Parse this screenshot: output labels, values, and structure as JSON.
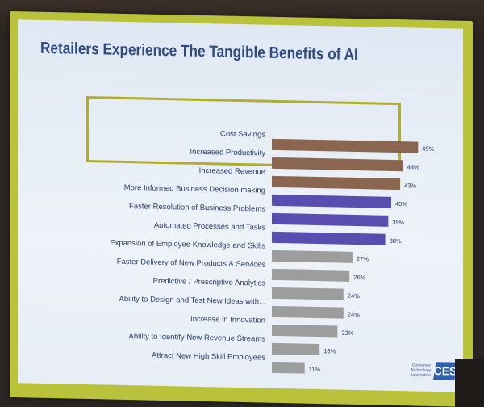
{
  "slide": {
    "title": "Retailers Experience The Tangible Benefits of AI",
    "logo": {
      "text_lines": [
        "Consumer",
        "Technology",
        "Association"
      ],
      "mark": "CES"
    }
  },
  "chart_data": {
    "type": "bar",
    "orientation": "horizontal",
    "title": "Retailers Experience The Tangible Benefits of AI",
    "xlabel": "",
    "ylabel": "",
    "xlim": [
      0,
      50
    ],
    "grid": false,
    "legend": "none",
    "categories": [
      "Cost Savings",
      "Increased Productivity",
      "Increased Revenue",
      "More Informed Business Decision making",
      "Faster Resolution of Business Problems",
      "Automated Processes and Tasks",
      "Expansion of Employee Knowledge and Skills",
      "Faster Delivery of New Products & Services",
      "Predictive / Prescriptive Analytics",
      "Ability to Design and Test New Ideas with...",
      "Increase in Innovation",
      "Ability to Identify New Revenue Streams",
      "Attract New High Skill Employees"
    ],
    "values": [
      49,
      44,
      43,
      40,
      39,
      38,
      27,
      26,
      24,
      24,
      22,
      16,
      11
    ],
    "value_labels": [
      "49%",
      "44%",
      "43%",
      "40%",
      "39%",
      "38%",
      "27%",
      "26%",
      "24%",
      "24%",
      "22%",
      "16%",
      "11%"
    ],
    "colors": {
      "top_group": "#8a6550",
      "middle_group": "#5a4db0",
      "rest": "#9d9d9d",
      "highlight_box": "#b3ad2e"
    },
    "color_groups": [
      "top_group",
      "top_group",
      "top_group",
      "middle_group",
      "middle_group",
      "middle_group",
      "rest",
      "rest",
      "rest",
      "rest",
      "rest",
      "rest",
      "rest"
    ]
  }
}
